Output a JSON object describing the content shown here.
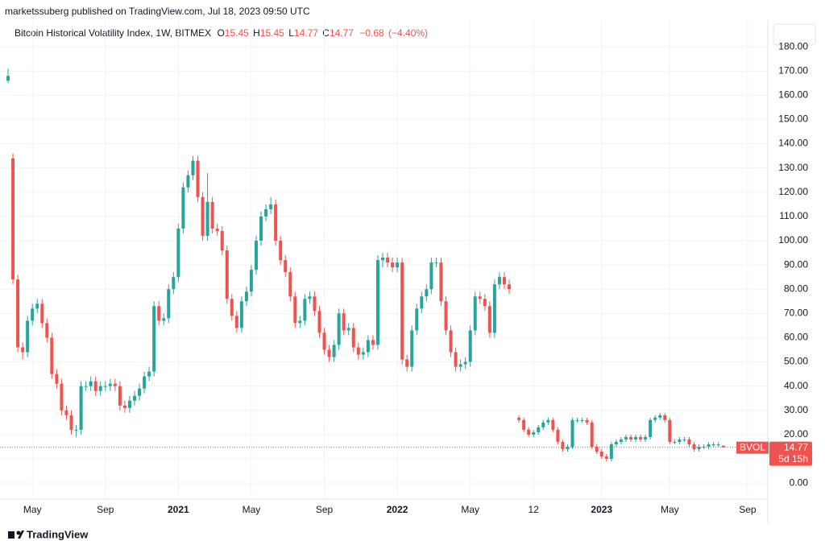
{
  "header": "marketssuberg published on TradingView.com, Jul 18, 2023 09:50 UTC",
  "footer": "TradingView",
  "chart_data": {
    "type": "candlestick",
    "title": "Bitcoin Historical Volatility Index, 1W, BITMEX",
    "ohlc": [
      {
        "label": "O",
        "value": 15.45
      },
      {
        "label": "H",
        "value": 15.45
      },
      {
        "label": "L",
        "value": 14.77
      },
      {
        "label": "C",
        "value": 14.77
      }
    ],
    "change": {
      "value": -0.68,
      "label": "−0.68"
    },
    "change_pct": {
      "value": -4.4,
      "label": "(−4.40%)"
    },
    "symbol": "BVOL",
    "countdown": "5d 15h",
    "up_color": "#26a69a",
    "down_color": "#ef5350",
    "grid": true,
    "ylim": [
      -6.6,
      191
    ],
    "yticks": [
      {
        "value": 0,
        "label": "0.00"
      },
      {
        "value": 10,
        "label": "10.00"
      },
      {
        "value": 20,
        "label": "20.00"
      },
      {
        "value": 30,
        "label": "30.00"
      },
      {
        "value": 40,
        "label": "40.00"
      },
      {
        "value": 50,
        "label": "50.00"
      },
      {
        "value": 60,
        "label": "60.00"
      },
      {
        "value": 70,
        "label": "70.00"
      },
      {
        "value": 80,
        "label": "80.00"
      },
      {
        "value": 90,
        "label": "90.00"
      },
      {
        "value": 100,
        "label": "100.00"
      },
      {
        "value": 110,
        "label": "110.00"
      },
      {
        "value": 120,
        "label": "120.00"
      },
      {
        "value": 130,
        "label": "130.00"
      },
      {
        "value": 140,
        "label": "140.00"
      },
      {
        "value": 150,
        "label": "150.00"
      },
      {
        "value": 160,
        "label": "160.00"
      },
      {
        "value": 170,
        "label": "170.00"
      },
      {
        "value": 180,
        "label": "180.00"
      }
    ],
    "categories": [
      null,
      null,
      null,
      null,
      null,
      "May",
      null,
      null,
      null,
      null,
      null,
      null,
      null,
      null,
      null,
      null,
      null,
      null,
      null,
      null,
      "Sep",
      null,
      null,
      null,
      null,
      null,
      null,
      null,
      null,
      null,
      null,
      null,
      null,
      null,
      null,
      "2021",
      null,
      null,
      null,
      null,
      null,
      null,
      null,
      null,
      null,
      null,
      null,
      null,
      null,
      null,
      "May",
      null,
      null,
      null,
      null,
      null,
      null,
      null,
      null,
      null,
      null,
      null,
      null,
      null,
      null,
      "Sep",
      null,
      null,
      null,
      null,
      null,
      null,
      null,
      null,
      null,
      null,
      null,
      null,
      null,
      null,
      "2022",
      null,
      null,
      null,
      null,
      null,
      null,
      null,
      null,
      null,
      null,
      null,
      null,
      null,
      null,
      "May",
      null,
      null,
      null,
      null,
      null,
      null,
      null,
      null,
      null,
      null,
      null,
      null,
      "12",
      null,
      null,
      null,
      null,
      null,
      null,
      null,
      null,
      null,
      null,
      null,
      null,
      null,
      "2023",
      null,
      null,
      null,
      null,
      null,
      null,
      null,
      null,
      null,
      null,
      null,
      null,
      null,
      "May",
      null,
      null,
      null,
      null,
      null,
      null,
      null,
      null,
      null,
      null,
      null,
      null,
      null,
      null,
      null,
      "Sep",
      null,
      null
    ],
    "open": [
      166,
      134,
      84,
      56,
      54,
      67,
      72,
      74,
      66,
      60,
      45,
      41,
      30,
      28,
      22,
      22,
      40,
      40,
      42,
      38,
      40,
      40,
      41,
      40,
      32,
      31,
      34,
      36,
      39,
      44,
      46,
      73,
      67,
      68,
      80,
      85,
      105,
      122,
      127,
      133,
      118,
      102,
      116,
      105,
      104,
      96,
      76,
      69,
      64,
      75,
      79,
      88,
      100,
      110,
      113,
      115,
      100,
      92,
      87,
      77,
      66,
      67,
      76,
      77,
      71,
      62,
      55,
      52,
      57,
      70,
      63,
      64,
      56,
      53,
      54,
      59,
      57,
      92,
      93,
      91,
      89,
      91,
      51,
      48,
      63,
      72,
      77,
      80,
      91,
      91,
      75,
      63,
      54,
      48,
      49,
      50,
      63,
      77,
      76,
      73,
      62,
      82,
      85,
      82,
      null,
      27,
      26,
      22,
      20,
      21,
      23,
      25,
      26,
      22,
      17,
      14,
      15,
      26,
      26,
      26,
      25,
      15,
      13,
      11,
      10,
      16,
      17,
      18,
      19,
      18,
      19,
      18,
      19,
      26,
      27,
      28,
      26,
      17,
      17,
      18,
      18,
      16,
      14,
      15,
      15,
      16,
      16,
      15.45,
      null,
      null,
      null,
      null,
      null,
      null,
      null
    ],
    "high": [
      171,
      136,
      86,
      58,
      69,
      74,
      76,
      76,
      68,
      62,
      47,
      43,
      32,
      30,
      24,
      42,
      42,
      44,
      44,
      42,
      42,
      43,
      43,
      42,
      34,
      36,
      38,
      41,
      46,
      48,
      75,
      75,
      70,
      82,
      87,
      107,
      124,
      129,
      135,
      135,
      120,
      128,
      118,
      107,
      106,
      98,
      78,
      71,
      77,
      81,
      90,
      102,
      112,
      115,
      118,
      117,
      102,
      94,
      89,
      79,
      69,
      78,
      79,
      79,
      73,
      64,
      57,
      59,
      72,
      72,
      66,
      66,
      58,
      56,
      61,
      61,
      94,
      95,
      95,
      93,
      93,
      93,
      53,
      65,
      74,
      79,
      82,
      93,
      93,
      93,
      77,
      65,
      56,
      51,
      52,
      65,
      79,
      79,
      78,
      75,
      84,
      87,
      87,
      84,
      null,
      28,
      27,
      23,
      22,
      24,
      26,
      27,
      27,
      23,
      18,
      16,
      27,
      27,
      27,
      27,
      26,
      16,
      14,
      12,
      17,
      18,
      19,
      20,
      20,
      20,
      20,
      20,
      27,
      28,
      29,
      29,
      27,
      18,
      19,
      19,
      19,
      17,
      16,
      16,
      17,
      17,
      17,
      15.45,
      null,
      null,
      null,
      null,
      null,
      null,
      null
    ],
    "low": [
      165,
      82,
      54,
      51,
      52,
      65,
      70,
      64,
      58,
      43,
      39,
      28,
      26,
      20,
      19,
      20,
      38,
      38,
      36,
      36,
      38,
      38,
      38,
      30,
      29,
      29,
      32,
      34,
      37,
      42,
      44,
      65,
      65,
      66,
      78,
      83,
      103,
      120,
      125,
      116,
      100,
      100,
      103,
      102,
      94,
      74,
      67,
      62,
      62,
      73,
      77,
      86,
      98,
      108,
      111,
      98,
      90,
      85,
      75,
      64,
      64,
      65,
      74,
      69,
      60,
      53,
      50,
      50,
      55,
      61,
      61,
      54,
      51,
      51,
      52,
      55,
      55,
      89,
      89,
      87,
      87,
      49,
      46,
      46,
      61,
      70,
      75,
      78,
      89,
      73,
      61,
      52,
      46,
      46,
      47,
      48,
      61,
      74,
      71,
      60,
      60,
      80,
      80,
      78,
      null,
      25,
      21,
      19,
      19,
      20,
      22,
      24,
      21,
      16,
      13,
      13,
      14,
      25,
      25,
      24,
      14,
      12,
      10,
      9,
      9,
      15,
      16,
      17,
      17,
      17,
      17,
      17,
      18,
      25,
      26,
      25,
      16,
      16,
      16,
      17,
      15,
      13,
      13,
      14,
      14,
      15,
      15,
      14.77,
      null,
      null,
      null,
      null,
      null,
      null,
      null
    ],
    "close": [
      168,
      84,
      56,
      54,
      67,
      72,
      74,
      66,
      60,
      45,
      41,
      30,
      28,
      22,
      22,
      40,
      40,
      42,
      38,
      40,
      40,
      41,
      40,
      32,
      31,
      34,
      36,
      39,
      44,
      46,
      73,
      67,
      68,
      80,
      85,
      105,
      122,
      127,
      133,
      118,
      102,
      116,
      105,
      104,
      96,
      76,
      69,
      64,
      75,
      79,
      88,
      100,
      110,
      113,
      115,
      100,
      92,
      87,
      77,
      66,
      67,
      76,
      77,
      71,
      62,
      55,
      52,
      57,
      70,
      63,
      64,
      56,
      53,
      54,
      59,
      57,
      92,
      93,
      91,
      89,
      91,
      51,
      48,
      63,
      72,
      77,
      80,
      91,
      91,
      75,
      63,
      54,
      48,
      49,
      50,
      63,
      77,
      76,
      73,
      62,
      82,
      85,
      82,
      80,
      null,
      26,
      22,
      20,
      21,
      23,
      25,
      26,
      22,
      17,
      14,
      15,
      26,
      26,
      26,
      25,
      15,
      13,
      11,
      10,
      16,
      17,
      18,
      19,
      18,
      19,
      18,
      19,
      26,
      27,
      28,
      26,
      17,
      17,
      18,
      18,
      16,
      14,
      15,
      15,
      16,
      16,
      16,
      14.77,
      null,
      null,
      null,
      null,
      null,
      null,
      null
    ]
  }
}
